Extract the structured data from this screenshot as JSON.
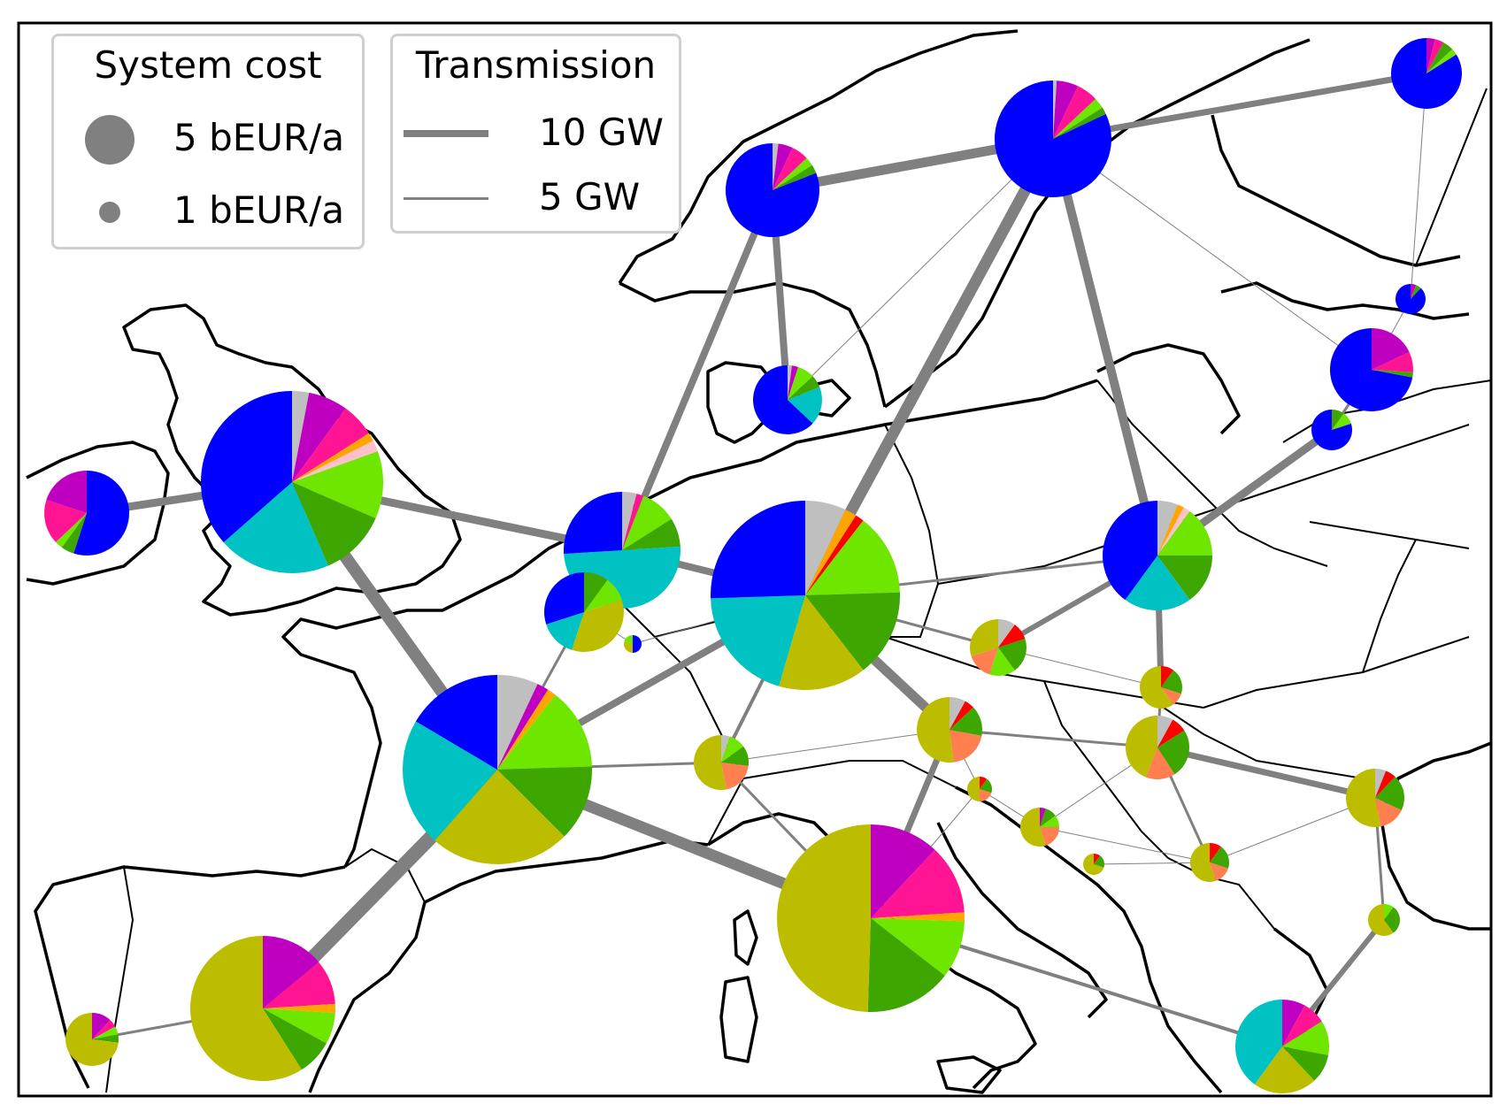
{
  "colors": {
    "hydro": "#0000ff",
    "onshore_wind": "#00c2c2",
    "solar": "#bdbd00",
    "offshore_wind_dc": "#3ea600",
    "offshore_wind_ac": "#6ee600",
    "battery": "#c000c0",
    "hydrogen": "#ff1493",
    "gas": "#ffa500",
    "nuclear": "#bfbfbf",
    "coal": "#ff0000",
    "biomass": "#ff7f50",
    "other": "#ffc0cb",
    "transmission": "#808080",
    "coastline": "#000000"
  },
  "legend_cost": {
    "title": "System cost",
    "large_label": "5 bEUR/a",
    "small_label": "1 bEUR/a"
  },
  "legend_transmission": {
    "title": "Transmission",
    "thick_label": "10 GW",
    "thin_label": "5 GW"
  }
}
